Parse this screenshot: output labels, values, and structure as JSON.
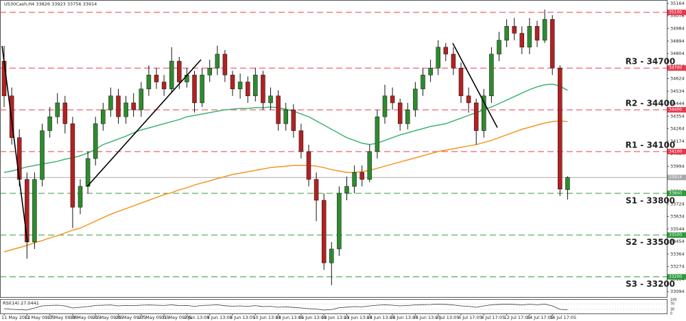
{
  "chart_data": {
    "type": "candlestick",
    "title": "US30Cash,H4 33826 33923 33756 33914",
    "categories": [
      "11 May 2021",
      null,
      null,
      "12 May 09:05",
      null,
      null,
      "17 May 09:05",
      null,
      null,
      "19 May 09:05",
      null,
      null,
      "21 May 09:05",
      null,
      null,
      "25 May 09:05",
      null,
      null,
      "27 May 09:05",
      null,
      null,
      "31 May 09:05",
      null,
      null,
      "2 Jun 13:05",
      null,
      null,
      "4 Jun 13:05",
      null,
      null,
      "8 Jun 13:05",
      null,
      null,
      "10 Jun 13:05",
      null,
      null,
      "14 Jun 13:05",
      null,
      null,
      "16 Jun 13:05",
      null,
      null,
      "18 Jun 13:05",
      null,
      null,
      "22 Jun 13:05",
      null,
      null,
      "24 Jun 13:05",
      null,
      null,
      "28 Jun 13:05",
      null,
      null,
      "30 Jun 13:05",
      null,
      null,
      "2 Jul 13:05",
      null,
      null,
      "6 Jul 17:05",
      null,
      null,
      "8 Jul 17:05",
      null,
      null,
      "12 Jul 17:05",
      null,
      null,
      "14 Jul 17:05",
      null,
      null,
      "16 Jul 17:05",
      null,
      null
    ],
    "open": [
      34750,
      34500,
      34200,
      33900,
      33450,
      33900,
      34250,
      34350,
      34450,
      34300,
      33700,
      33850,
      34050,
      34300,
      34400,
      34500,
      34350,
      34450,
      34400,
      34550,
      34650,
      34600,
      34550,
      34750,
      34600,
      34650,
      34450,
      34650,
      34700,
      34800,
      34650,
      34550,
      34600,
      34500,
      34650,
      34450,
      34500,
      34300,
      34400,
      34250,
      34100,
      33900,
      33750,
      33300,
      33400,
      33800,
      33850,
      33950,
      33900,
      34100,
      34350,
      34500,
      34450,
      34300,
      34400,
      34550,
      34650,
      34700,
      34850,
      34800,
      34700,
      34500,
      34450,
      34250,
      34500,
      34800,
      34900,
      35000,
      34950,
      34850,
      35000,
      34900,
      35050,
      34700,
      33826
    ],
    "high": [
      34860,
      34560,
      34260,
      33950,
      33950,
      34300,
      34420,
      34520,
      34500,
      34350,
      33900,
      34100,
      34350,
      34450,
      34560,
      34550,
      34500,
      34520,
      34600,
      34720,
      34700,
      34650,
      34850,
      34780,
      34700,
      34680,
      34700,
      34760,
      34860,
      34830,
      34680,
      34660,
      34640,
      34700,
      34680,
      34560,
      34540,
      34450,
      34440,
      34300,
      34150,
      33950,
      33800,
      33450,
      33850,
      33920,
      34000,
      34000,
      34150,
      34400,
      34580,
      34560,
      34480,
      34450,
      34600,
      34700,
      34760,
      34900,
      34880,
      34850,
      34740,
      34560,
      34480,
      34550,
      34850,
      34960,
      35050,
      35060,
      35000,
      35060,
      35040,
      35120,
      35080,
      34720,
      33923
    ],
    "low": [
      34420,
      34150,
      33850,
      33330,
      33400,
      33850,
      34200,
      34300,
      34230,
      33550,
      33650,
      33800,
      34000,
      34250,
      34350,
      34300,
      34300,
      34350,
      34350,
      34500,
      34550,
      34500,
      34520,
      34550,
      34560,
      34380,
      34420,
      34600,
      34650,
      34600,
      34500,
      34480,
      34450,
      34460,
      34400,
      34400,
      34250,
      34250,
      34200,
      34050,
      33850,
      33600,
      33250,
      33140,
      33350,
      33750,
      33800,
      33850,
      33880,
      34050,
      34300,
      34400,
      34250,
      34260,
      34350,
      34500,
      34600,
      34650,
      34750,
      34650,
      34450,
      34380,
      34150,
      34200,
      34450,
      34750,
      34850,
      34900,
      34800,
      34800,
      34850,
      34880,
      34650,
      33780,
      33756
    ],
    "close": [
      34500,
      34200,
      33900,
      33450,
      33900,
      34250,
      34350,
      34450,
      34300,
      33700,
      33850,
      34050,
      34300,
      34400,
      34500,
      34350,
      34450,
      34400,
      34550,
      34650,
      34600,
      34550,
      34750,
      34600,
      34650,
      34450,
      34650,
      34700,
      34800,
      34650,
      34550,
      34600,
      34500,
      34650,
      34450,
      34500,
      34300,
      34400,
      34250,
      34100,
      33900,
      33750,
      33300,
      33400,
      33800,
      33850,
      33950,
      33900,
      34100,
      34350,
      34500,
      34450,
      34300,
      34400,
      34550,
      34650,
      34700,
      34850,
      34800,
      34700,
      34500,
      34450,
      34250,
      34500,
      34800,
      34900,
      35000,
      34950,
      34850,
      35000,
      34900,
      35050,
      34700,
      33830,
      33914
    ],
    "up_color": "#2e8b2e",
    "down_color": "#b22222",
    "ylim": [
      33055,
      35189
    ],
    "yticks": [
      35164,
      35076,
      34984,
      34894,
      34804,
      34714,
      34624,
      34534,
      34444,
      34354,
      34264,
      34174,
      34084,
      33994,
      33904,
      33814,
      33724,
      33634,
      33544,
      33454,
      33364,
      33274,
      33184,
      33094
    ],
    "lines": [
      {
        "color": "#3cb371",
        "values": [
          33950,
          33960,
          33975,
          33990,
          34000,
          34010,
          34020,
          34030,
          34045,
          34055,
          34070,
          34090,
          34115,
          34150,
          34170,
          34190,
          34210,
          34235,
          34255,
          34270,
          34285,
          34300,
          34315,
          34330,
          34350,
          34360,
          34370,
          34380,
          34390,
          34400,
          34405,
          34410,
          34410,
          34415,
          34415,
          34420,
          34415,
          34405,
          34390,
          34370,
          34350,
          34320,
          34290,
          34260,
          34230,
          34200,
          34180,
          34160,
          34150,
          34160,
          34180,
          34200,
          34220,
          34235,
          34250,
          34265,
          34280,
          34290,
          34300,
          34320,
          34340,
          34360,
          34380,
          34400,
          34420,
          34445,
          34470,
          34495,
          34520,
          34545,
          34565,
          34580,
          34585,
          34570,
          34540
        ]
      },
      {
        "color": "#f7941d",
        "values": [
          33380,
          33395,
          33410,
          33425,
          33445,
          33460,
          33480,
          33495,
          33515,
          33535,
          33550,
          33575,
          33600,
          33625,
          33650,
          33670,
          33690,
          33710,
          33730,
          33750,
          33770,
          33790,
          33805,
          33825,
          33840,
          33860,
          33875,
          33890,
          33905,
          33920,
          33935,
          33945,
          33955,
          33965,
          33975,
          33985,
          33990,
          33995,
          34000,
          34000,
          34000,
          33995,
          33985,
          33970,
          33960,
          33950,
          33950,
          33955,
          33965,
          33980,
          33995,
          34010,
          34025,
          34040,
          34055,
          34070,
          34085,
          34100,
          34110,
          34120,
          34130,
          34140,
          34150,
          34165,
          34180,
          34200,
          34220,
          34240,
          34260,
          34275,
          34290,
          34305,
          34315,
          34320,
          34315
        ]
      }
    ],
    "levels": [
      {
        "value": 35100,
        "color": "#e8384f",
        "style": "dashed"
      },
      {
        "value": 34700,
        "label": "R3 - 34700",
        "color": "#e8384f",
        "style": "dashed"
      },
      {
        "value": 34400,
        "label": "R2 - 34400",
        "color": "#e8384f",
        "style": "dashed"
      },
      {
        "value": 34100,
        "label": "R1 - 34100",
        "color": "#e8384f",
        "style": "dashed"
      },
      {
        "value": 33914,
        "color": "#a9a9a9",
        "style": "solid"
      },
      {
        "value": 33800,
        "label": "S1 - 33800",
        "color": "#2e9a3a",
        "style": "dashed"
      },
      {
        "value": 33500,
        "label": "S2 - 33500",
        "color": "#2e9a3a",
        "style": "dashed"
      },
      {
        "value": 33200,
        "label": "S3 - 33200",
        "color": "#2e9a3a",
        "style": "dashed"
      }
    ],
    "indicator": {
      "type": "line",
      "label": "RSI(14) 27.0441",
      "color": "#333333",
      "ylim": [
        0,
        100
      ],
      "yticks": [
        100,
        70,
        30,
        0
      ],
      "values": [
        35,
        30,
        28,
        25,
        40,
        55,
        58,
        60,
        55,
        40,
        45,
        50,
        58,
        60,
        62,
        55,
        58,
        57,
        60,
        62,
        60,
        58,
        63,
        57,
        58,
        52,
        58,
        60,
        63,
        56,
        53,
        55,
        52,
        57,
        50,
        52,
        45,
        48,
        44,
        40,
        35,
        32,
        25,
        28,
        42,
        46,
        50,
        48,
        55,
        60,
        63,
        60,
        55,
        58,
        62,
        64,
        65,
        68,
        66,
        62,
        55,
        52,
        45,
        55,
        63,
        66,
        68,
        66,
        62,
        67,
        63,
        68,
        55,
        30,
        27.0441
      ]
    }
  }
}
